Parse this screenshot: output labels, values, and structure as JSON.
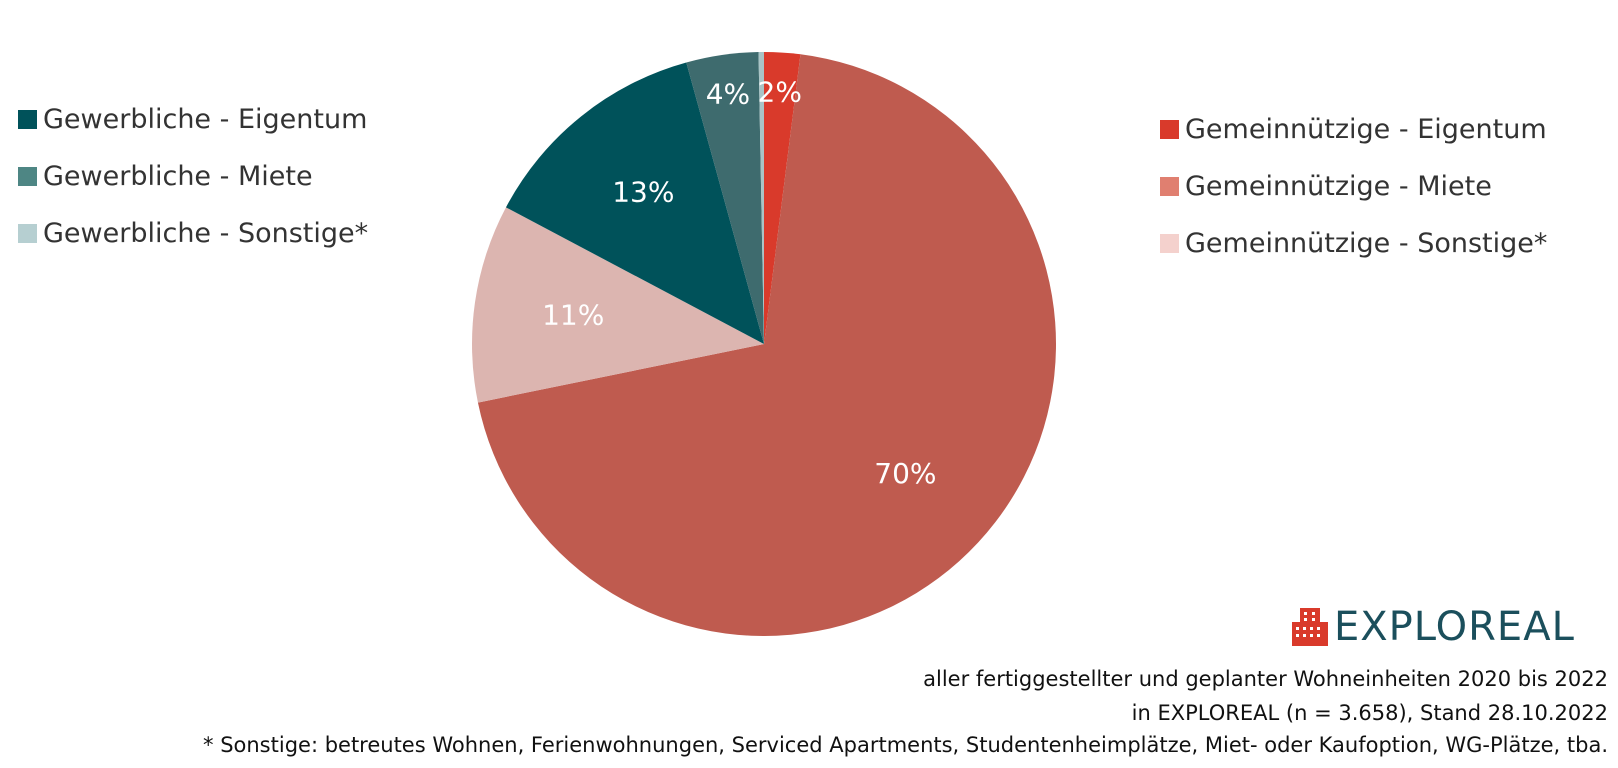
{
  "chart_data": {
    "type": "pie",
    "title": "",
    "categories": [
      "Gemeinnützige - Eigentum",
      "Gemeinnützige - Miete",
      "Gemeinnützige - Sonstige*",
      "Gewerbliche - Eigentum",
      "Gewerbliche - Miete",
      "Gewerbliche - Sonstige*"
    ],
    "values": [
      2,
      70,
      11,
      13,
      4,
      0.3
    ],
    "labels": [
      "2%",
      "70%",
      "11%",
      "13%",
      "4%",
      ""
    ],
    "colors": [
      "#d93a2b",
      "#bf5b4f",
      "#dcb5b0",
      "#00525a",
      "#3e6b6e",
      "#a9c4c6"
    ],
    "legend_placement": "left and right",
    "legend_left": [
      {
        "label": "Gewerbliche - Eigentum",
        "color": "#00525a"
      },
      {
        "label": "Gewerbliche - Miete",
        "color": "#4e8684"
      },
      {
        "label": "Gewerbliche - Sonstige*",
        "color": "#b6cfd1"
      }
    ],
    "legend_right": [
      {
        "label": "Gemeinnützige - Eigentum",
        "color": "#d93a2b"
      },
      {
        "label": "Gemeinnützige - Miete",
        "color": "#e07f70"
      },
      {
        "label": "Gemeinnützige - Sonstige*",
        "color": "#f4d1cd"
      }
    ]
  },
  "logo": {
    "text": "EXPLOREAL",
    "icon": "building-icon",
    "icon_color": "#d93a2b",
    "text_color": "#1b4f5c"
  },
  "notes": {
    "line1": "aller fertiggestellter und geplanter Wohneinheiten 2020 bis 2022",
    "line2": "in EXPLOREAL (n = 3.658), Stand 28.10.2022",
    "line3": "* Sonstige: betreutes Wohnen, Ferienwohnungen, Serviced Apartments, Studentenheimplätze, Miet- oder Kaufoption, WG-Plätze, tba."
  }
}
